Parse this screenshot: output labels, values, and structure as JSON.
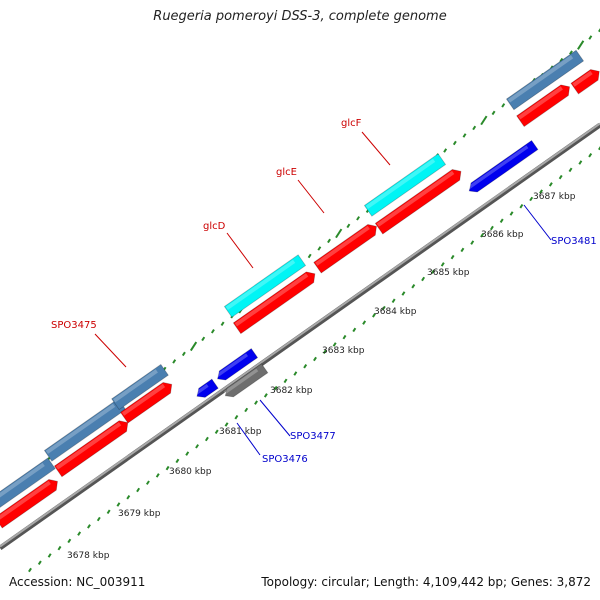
{
  "title": "Ruegeria pomeroyi DSS-3, complete genome",
  "footer": {
    "accession": "Accession: NC_003911",
    "summary": "Topology: circular; Length: 4,109,442 bp; Genes: 3,872"
  },
  "colors": {
    "backbone": "#8a8a8a",
    "tick": "#2a8a2a",
    "forward_cds": "#ff0000",
    "forward_gene_blue": "#4a7fb0",
    "forward_gene_cyan": "#00f5f5",
    "reverse_cds": "#0000ee",
    "reverse_gray": "#6e6e6e",
    "label_forward": "#cc0000",
    "label_reverse": "#0000cc"
  },
  "ruler": {
    "labels": [
      "3678 kbp",
      "3679 kbp",
      "3680 kbp",
      "3681 kbp",
      "3682 kbp",
      "3683 kbp",
      "3684 kbp",
      "3685 kbp",
      "3686 kbp",
      "3687 kbp"
    ]
  },
  "gene_labels": [
    {
      "id": "spo3475",
      "text": "SPO3475",
      "strand": "forward"
    },
    {
      "id": "glcd",
      "text": "glcD",
      "strand": "forward"
    },
    {
      "id": "glce",
      "text": "glcE",
      "strand": "forward"
    },
    {
      "id": "glcf",
      "text": "glcF",
      "strand": "forward"
    },
    {
      "id": "spo3476",
      "text": "SPO3476",
      "strand": "reverse"
    },
    {
      "id": "spo3477",
      "text": "SPO3477",
      "strand": "reverse"
    },
    {
      "id": "spo3481",
      "text": "SPO3481",
      "strand": "reverse"
    }
  ]
}
